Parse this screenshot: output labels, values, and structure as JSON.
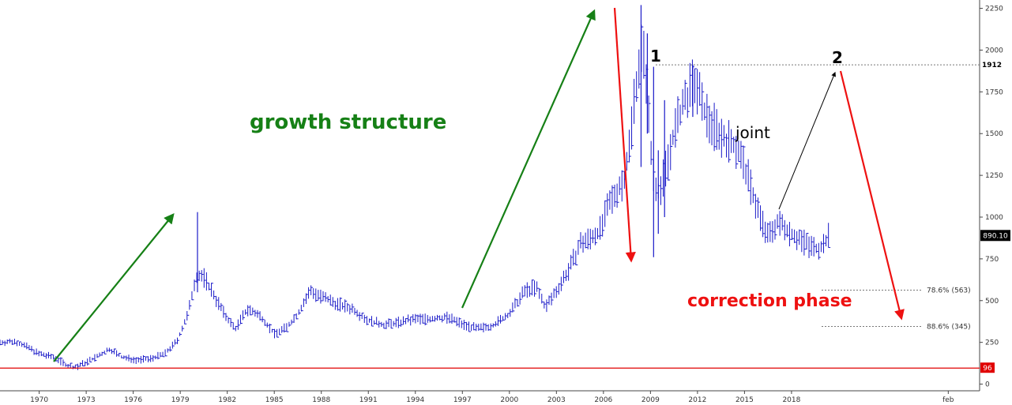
{
  "chart_data": {
    "type": "bar",
    "title": "",
    "xlabel": "",
    "ylabel": "",
    "ylim": [
      -40,
      2300
    ],
    "xlim": [
      1967.5,
      2030.0
    ],
    "grid": false,
    "y_ticks": [
      0,
      250,
      500,
      750,
      1000,
      1250,
      1500,
      1750,
      2000,
      2250
    ],
    "x_ticks": [
      {
        "x": 1970,
        "label": "1970"
      },
      {
        "x": 1973,
        "label": "1973"
      },
      {
        "x": 1976,
        "label": "1976"
      },
      {
        "x": 1979,
        "label": "1979"
      },
      {
        "x": 1982,
        "label": "1982"
      },
      {
        "x": 1985,
        "label": "1985"
      },
      {
        "x": 1988,
        "label": "1988"
      },
      {
        "x": 1991,
        "label": "1991"
      },
      {
        "x": 1994,
        "label": "1994"
      },
      {
        "x": 1997,
        "label": "1997"
      },
      {
        "x": 2000,
        "label": "2000"
      },
      {
        "x": 2003,
        "label": "2003"
      },
      {
        "x": 2006,
        "label": "2006"
      },
      {
        "x": 2009,
        "label": "2009"
      },
      {
        "x": 2012,
        "label": "2012"
      },
      {
        "x": 2015,
        "label": "2015"
      },
      {
        "x": 2018,
        "label": "2018"
      },
      {
        "x": 2028,
        "label": "feb"
      }
    ],
    "series": [
      {
        "name": "",
        "color": "#1a1ac8",
        "anchors": [
          [
            1967.5,
            250
          ],
          [
            1968.5,
            255
          ],
          [
            1969.3,
            220
          ],
          [
            1970.0,
            180
          ],
          [
            1971.0,
            160
          ],
          [
            1971.8,
            110
          ],
          [
            1972.3,
            100
          ],
          [
            1973.0,
            130
          ],
          [
            1973.8,
            170
          ],
          [
            1974.5,
            210
          ],
          [
            1975.3,
            160
          ],
          [
            1976.2,
            145
          ],
          [
            1977.0,
            150
          ],
          [
            1978.0,
            180
          ],
          [
            1978.8,
            260
          ],
          [
            1979.5,
            420
          ],
          [
            1980.0,
            650
          ],
          [
            1980.5,
            640
          ],
          [
            1981.0,
            560
          ],
          [
            1981.8,
            420
          ],
          [
            1982.5,
            330
          ],
          [
            1983.3,
            450
          ],
          [
            1984.2,
            400
          ],
          [
            1985.0,
            300
          ],
          [
            1985.8,
            340
          ],
          [
            1986.5,
            420
          ],
          [
            1987.3,
            560
          ],
          [
            1988.0,
            520
          ],
          [
            1989.0,
            480
          ],
          [
            1990.0,
            450
          ],
          [
            1991.0,
            380
          ],
          [
            1992.0,
            355
          ],
          [
            1993.0,
            370
          ],
          [
            1994.0,
            390
          ],
          [
            1995.0,
            390
          ],
          [
            1996.0,
            400
          ],
          [
            1997.0,
            360
          ],
          [
            1998.0,
            330
          ],
          [
            1999.0,
            355
          ],
          [
            2000.0,
            420
          ],
          [
            2001.0,
            560
          ],
          [
            2001.7,
            580
          ],
          [
            2002.3,
            460
          ],
          [
            2003.0,
            560
          ],
          [
            2004.0,
            720
          ],
          [
            2004.5,
            840
          ],
          [
            2005.0,
            860
          ],
          [
            2005.8,
            920
          ],
          [
            2006.3,
            1060
          ],
          [
            2006.8,
            1150
          ],
          [
            2007.3,
            1220
          ],
          [
            2007.7,
            1450
          ],
          [
            2008.0,
            1750
          ],
          [
            2008.4,
            2000
          ],
          [
            2008.7,
            1900
          ],
          [
            2009.0,
            1400
          ],
          [
            2009.3,
            1200
          ],
          [
            2009.6,
            1150
          ],
          [
            2010.0,
            1300
          ],
          [
            2010.5,
            1500
          ],
          [
            2011.0,
            1650
          ],
          [
            2011.5,
            1750
          ],
          [
            2011.9,
            1820
          ],
          [
            2012.3,
            1650
          ],
          [
            2013.0,
            1550
          ],
          [
            2013.8,
            1460
          ],
          [
            2014.5,
            1420
          ],
          [
            2015.0,
            1300
          ],
          [
            2015.5,
            1150
          ],
          [
            2016.0,
            1000
          ],
          [
            2016.5,
            880
          ],
          [
            2017.0,
            960
          ],
          [
            2017.5,
            950
          ],
          [
            2018.0,
            900
          ],
          [
            2018.5,
            870
          ],
          [
            2019.0,
            840
          ],
          [
            2019.5,
            810
          ],
          [
            2020.0,
            830
          ],
          [
            2020.4,
            890
          ]
        ],
        "spikes": [
          [
            1980.1,
            1030,
            550
          ],
          [
            2008.4,
            2270,
            1300
          ],
          [
            2008.8,
            2100,
            1500
          ],
          [
            2009.2,
            1900,
            760
          ],
          [
            2009.5,
            1400,
            900
          ],
          [
            2009.9,
            1700,
            1000
          ],
          [
            2011.7,
            1912,
            1600
          ]
        ]
      }
    ],
    "last_price_label": "890.10",
    "support_label": "96",
    "support_value": 96,
    "peak_label": "1912",
    "peak_value": 1912,
    "fib_levels": [
      {
        "label": "78.6%  (563)",
        "value": 563
      },
      {
        "label": "88.6%  (345)",
        "value": 345
      }
    ],
    "annotations": {
      "growth": "growth structure",
      "correction": "correction phase",
      "joint": "joint",
      "wave1": "1",
      "wave2": "2"
    },
    "colors": {
      "bars": "#1a1ac8",
      "growth": "#168016",
      "correction": "#ee1111",
      "support": "#e00000"
    }
  }
}
